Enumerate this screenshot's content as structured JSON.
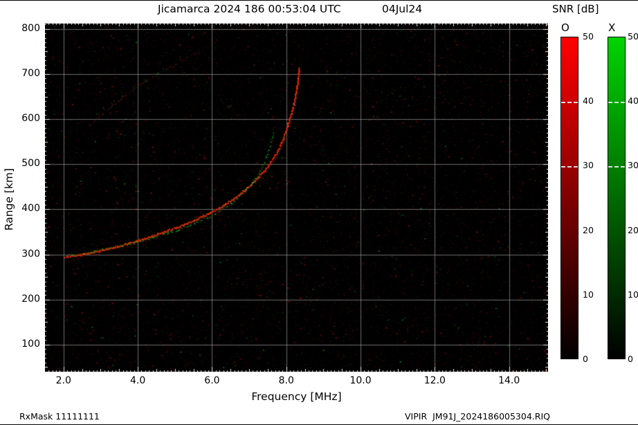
{
  "page": {
    "title_main": "Jicamarca 2024 186 00:53:04 UTC",
    "title_date": "04Jul24",
    "footer_left": "RxMask 11111111",
    "footer_right": "VIPIR  JM91J_2024186005304.RIQ"
  },
  "colorbar": {
    "title": "SNR [dB]",
    "bars": [
      {
        "label": "O",
        "top_color": "#ff0000"
      },
      {
        "label": "X",
        "top_color": "#00d400"
      }
    ],
    "bottom_color": "#000000",
    "ticks": [
      0,
      10,
      20,
      30,
      40,
      50
    ],
    "dashed_ticks": [
      30,
      40
    ],
    "min": 0,
    "max": 50
  },
  "chart_data": {
    "type": "heatmap",
    "title": "Jicamarca 2024 186 00:53:04 UTC",
    "date": "04Jul24",
    "xlabel": "Frequency [MHz]",
    "ylabel": "Range [km]",
    "xlim": [
      1.5,
      15.05
    ],
    "ylim": [
      40,
      812
    ],
    "x_ticks": [
      2,
      4,
      6,
      8,
      10,
      12,
      14
    ],
    "y_ticks": [
      100,
      200,
      300,
      400,
      500,
      600,
      700,
      800
    ],
    "grid": true,
    "background_color": "#000000",
    "grid_color": "#9a9a9a",
    "colorbar_label": "SNR [dB]",
    "snr_range_db": [
      0,
      50
    ],
    "series": [
      {
        "name": "O-mode echo trace (first hop)",
        "mode": "O",
        "color": "#ee2000",
        "points_mhz_km": [
          [
            2.05,
            293
          ],
          [
            2.2,
            295
          ],
          [
            2.4,
            298
          ],
          [
            2.6,
            301
          ],
          [
            2.8,
            304
          ],
          [
            3.0,
            308
          ],
          [
            3.2,
            312
          ],
          [
            3.4,
            316
          ],
          [
            3.6,
            320
          ],
          [
            3.8,
            325
          ],
          [
            4.0,
            330
          ],
          [
            4.2,
            335
          ],
          [
            4.4,
            340
          ],
          [
            4.6,
            346
          ],
          [
            4.8,
            352
          ],
          [
            5.0,
            358
          ],
          [
            5.2,
            364
          ],
          [
            5.4,
            371
          ],
          [
            5.6,
            378
          ],
          [
            5.8,
            386
          ],
          [
            6.0,
            394
          ],
          [
            6.2,
            403
          ],
          [
            6.4,
            413
          ],
          [
            6.6,
            424
          ],
          [
            6.8,
            436
          ],
          [
            7.0,
            450
          ],
          [
            7.2,
            466
          ],
          [
            7.4,
            484
          ],
          [
            7.6,
            505
          ],
          [
            7.75,
            525
          ],
          [
            7.9,
            550
          ],
          [
            8.0,
            575
          ],
          [
            8.1,
            600
          ],
          [
            8.2,
            630
          ],
          [
            8.28,
            662
          ],
          [
            8.33,
            692
          ],
          [
            8.36,
            715
          ]
        ]
      },
      {
        "name": "X-mode echo trace (first hop)",
        "mode": "X",
        "color": "#00dd33",
        "points_mhz_km": [
          [
            2.05,
            298
          ],
          [
            2.3,
            301
          ],
          [
            2.6,
            305
          ],
          [
            2.9,
            309
          ],
          [
            3.2,
            314
          ],
          [
            3.5,
            319
          ],
          [
            3.8,
            325
          ],
          [
            4.1,
            331
          ],
          [
            4.4,
            338
          ],
          [
            4.7,
            345
          ],
          [
            5.0,
            353
          ],
          [
            5.3,
            362
          ],
          [
            5.6,
            372
          ],
          [
            5.9,
            383
          ],
          [
            6.1,
            392
          ],
          [
            6.3,
            402
          ],
          [
            6.5,
            414
          ],
          [
            6.7,
            428
          ],
          [
            6.9,
            444
          ],
          [
            7.1,
            462
          ],
          [
            7.25,
            480
          ],
          [
            7.4,
            502
          ],
          [
            7.5,
            524
          ],
          [
            7.58,
            548
          ],
          [
            7.64,
            572
          ]
        ]
      },
      {
        "name": "O-mode echo trace (second hop, faint)",
        "mode": "O",
        "color": "#8c2410",
        "points_mhz_km": [
          [
            2.65,
            585
          ],
          [
            2.8,
            596
          ],
          [
            3.0,
            610
          ],
          [
            3.2,
            624
          ],
          [
            3.4,
            637
          ],
          [
            3.6,
            650
          ],
          [
            3.8,
            662
          ],
          [
            4.0,
            673
          ],
          [
            4.2,
            684
          ],
          [
            4.4,
            694
          ],
          [
            4.6,
            704
          ],
          [
            4.8,
            713
          ],
          [
            5.0,
            722
          ],
          [
            5.2,
            731
          ],
          [
            5.4,
            740
          ],
          [
            5.6,
            749
          ],
          [
            5.8,
            758
          ],
          [
            6.0,
            768
          ],
          [
            6.15,
            776
          ]
        ]
      },
      {
        "name": "X-mode specks (second hop)",
        "mode": "X",
        "color": "#00a228",
        "points_mhz_km": [
          [
            2.9,
            612
          ],
          [
            3.1,
            625
          ],
          [
            3.3,
            638
          ],
          [
            3.6,
            655
          ],
          [
            3.9,
            670
          ],
          [
            4.2,
            686
          ],
          [
            4.5,
            700
          ],
          [
            4.7,
            710
          ]
        ]
      }
    ],
    "noise": {
      "seed": 1337,
      "speck_count": 9500,
      "green_fraction": 0.18,
      "column_streaks": 26
    }
  }
}
